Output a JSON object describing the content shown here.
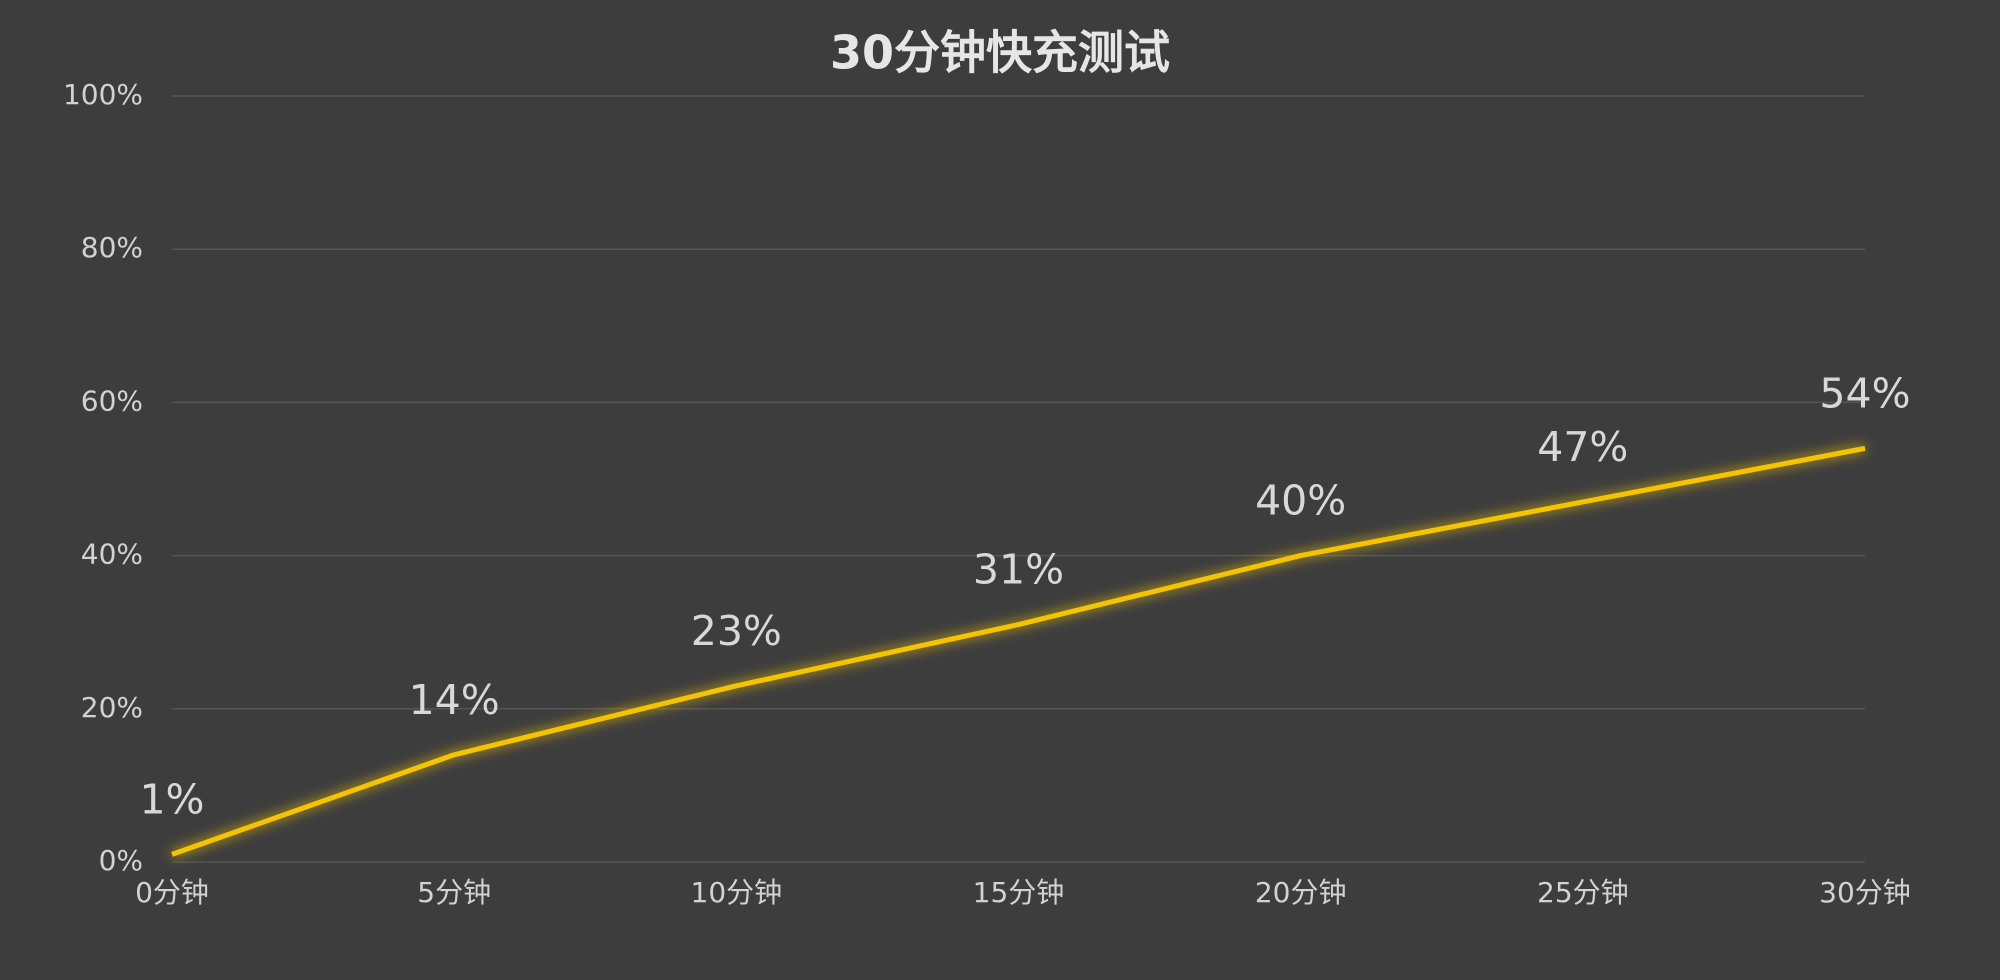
{
  "chart_data": {
    "type": "line",
    "title": "30分钟快充测试",
    "categories": [
      "0分钟",
      "5分钟",
      "10分钟",
      "15分钟",
      "20分钟",
      "25分钟",
      "30分钟"
    ],
    "values": [
      1,
      14,
      23,
      31,
      40,
      47,
      54
    ],
    "value_labels": [
      "1%",
      "14%",
      "23%",
      "31%",
      "40%",
      "47%",
      "54%"
    ],
    "color": "#f5c400",
    "ylim": [
      0,
      100
    ],
    "yticks": [
      {
        "value": 0,
        "label": "0%"
      },
      {
        "value": 20,
        "label": "20%"
      },
      {
        "value": 40,
        "label": "40%"
      },
      {
        "value": 60,
        "label": "60%"
      },
      {
        "value": 80,
        "label": "80%"
      },
      {
        "value": 100,
        "label": "100%"
      }
    ],
    "grid": true
  }
}
